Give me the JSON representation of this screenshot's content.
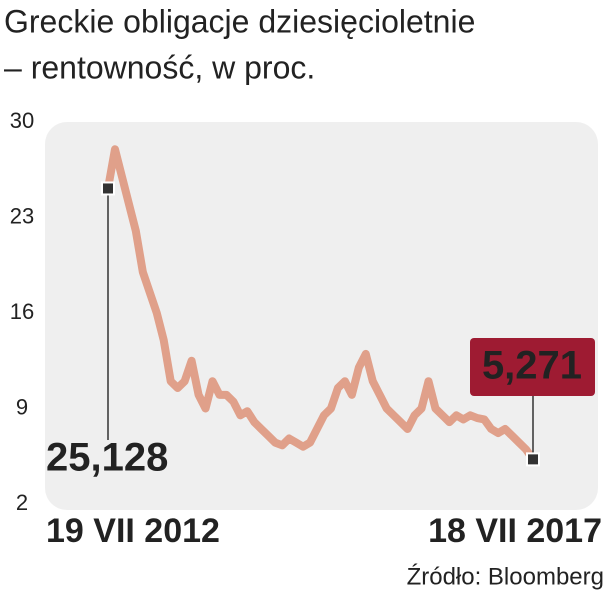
{
  "chart_data": {
    "type": "line",
    "title": "Greckie obligacje dziesięcioletnie",
    "subtitle": "– rentowność, w proc.",
    "source": "Źródło: Bloomberg",
    "categories": [
      "19 VII 2012",
      null,
      null,
      null,
      null,
      null,
      null,
      null,
      null,
      null,
      null,
      null,
      null,
      null,
      null,
      null,
      null,
      null,
      null,
      null,
      null,
      null,
      null,
      null,
      null,
      null,
      null,
      null,
      null,
      null,
      null,
      null,
      null,
      null,
      null,
      null,
      null,
      null,
      null,
      null,
      null,
      null,
      null,
      null,
      null,
      null,
      null,
      null,
      null,
      null,
      null,
      null,
      null,
      null,
      null,
      null,
      null,
      null,
      null,
      null,
      null,
      "18 VII 2017"
    ],
    "series": [
      {
        "name": "rentowność",
        "color": "#e0a08a",
        "values": [
          25.128,
          28,
          26,
          24,
          22,
          19,
          17.5,
          16,
          14,
          11,
          10.5,
          11,
          12.5,
          10,
          9,
          11,
          10,
          10,
          9.5,
          8.5,
          8.8,
          8,
          7.5,
          7,
          6.5,
          6.3,
          6.8,
          6.5,
          6.2,
          6.5,
          7.5,
          8.5,
          9,
          10.5,
          11,
          10,
          12,
          13,
          11,
          10,
          9,
          8.5,
          8,
          7.5,
          8.5,
          9,
          11,
          9,
          8.5,
          8,
          8.5,
          8.2,
          8.5,
          8.3,
          8.2,
          7.5,
          7.2,
          7.5,
          7,
          6.5,
          6,
          5.271
        ],
        "value_labels": [
          "25,128",
          null,
          null,
          null,
          null,
          null,
          null,
          null,
          null,
          null,
          null,
          null,
          null,
          null,
          null,
          null,
          null,
          null,
          null,
          null,
          null,
          null,
          null,
          null,
          null,
          null,
          null,
          null,
          null,
          null,
          null,
          null,
          null,
          null,
          null,
          null,
          null,
          null,
          null,
          null,
          null,
          null,
          null,
          null,
          null,
          null,
          null,
          null,
          null,
          null,
          null,
          null,
          null,
          null,
          null,
          null,
          null,
          null,
          null,
          null,
          null,
          "5,271"
        ]
      }
    ],
    "ylim": [
      2,
      30
    ],
    "yticks": [
      2,
      9,
      16,
      23,
      30
    ],
    "grid": false
  }
}
